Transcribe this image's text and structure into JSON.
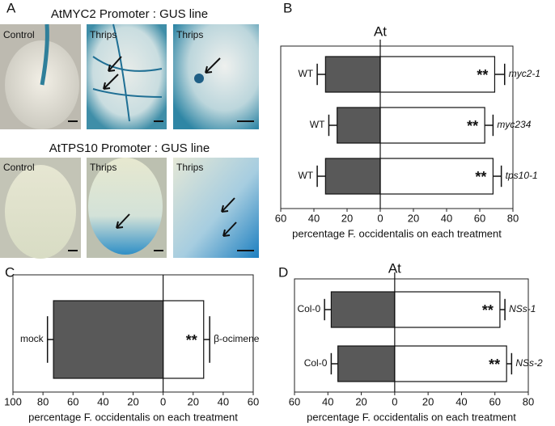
{
  "panel_labels": [
    "A",
    "B",
    "C",
    "D"
  ],
  "panel_a": {
    "rows": [
      {
        "title": "AtMYC2 Promoter : GUS line",
        "images": [
          "Control",
          "Thrips",
          "Thrips"
        ]
      },
      {
        "title": "AtTPS10 Promoter : GUS line",
        "images": [
          "Control",
          "Thrips",
          "Thrips"
        ]
      }
    ]
  },
  "chart_data": [
    {
      "type": "diverging-bar",
      "title": "At",
      "xlabel": "percentage F. occidentalis on each treatment",
      "xlim": [
        -60,
        80
      ],
      "xticks": [
        {
          "value": -60,
          "label": "60"
        },
        {
          "value": -40,
          "label": "40"
        },
        {
          "value": -20,
          "label": "20"
        },
        0,
        20,
        40,
        60,
        80
      ],
      "series": [
        {
          "labels": [
            "WT",
            "WT",
            "WT"
          ],
          "values": [
            -33,
            -26,
            -33
          ],
          "errors": [
            5,
            5,
            5
          ],
          "color": "#595959"
        },
        {
          "labels": [
            "myc2-1",
            "myc234",
            "tps10-1"
          ],
          "values": [
            69,
            63,
            68
          ],
          "errors": [
            6,
            5,
            5
          ],
          "color": "#ffffff"
        }
      ],
      "annotations": [
        "**",
        "**",
        "**"
      ]
    },
    {
      "type": "diverging-bar",
      "xlabel": "percentage F. occidentalis on each treatment",
      "xlim": [
        -100,
        60
      ],
      "xticks": [
        {
          "value": -100,
          "label": "100"
        },
        {
          "value": -80,
          "label": "80"
        },
        {
          "value": -60,
          "label": "60"
        },
        {
          "value": -40,
          "label": "40"
        },
        {
          "value": -20,
          "label": "20"
        },
        0,
        20,
        40,
        60
      ],
      "series": [
        {
          "labels": [
            "mock"
          ],
          "values": [
            -73
          ],
          "errors": [
            4
          ],
          "color": "#595959"
        },
        {
          "labels": [
            "β-ocimene"
          ],
          "values": [
            27
          ],
          "errors": [
            4
          ],
          "color": "#ffffff"
        }
      ],
      "annotations": [
        "**"
      ]
    },
    {
      "type": "diverging-bar",
      "title": "At",
      "xlabel": "percentage F. occidentalis on each treatment",
      "xlim": [
        -60,
        80
      ],
      "xticks": [
        {
          "value": -60,
          "label": "60"
        },
        {
          "value": -40,
          "label": "40"
        },
        {
          "value": -20,
          "label": "20"
        },
        0,
        20,
        40,
        60,
        80
      ],
      "series": [
        {
          "labels": [
            "Col-0",
            "Col-0"
          ],
          "values": [
            -38,
            -34
          ],
          "errors": [
            4,
            4
          ],
          "color": "#595959"
        },
        {
          "labels": [
            "NSs-1",
            "NSs-2"
          ],
          "values": [
            63,
            67
          ],
          "errors": [
            3,
            3
          ],
          "color": "#ffffff"
        }
      ],
      "annotations": [
        "**",
        "**"
      ]
    }
  ]
}
